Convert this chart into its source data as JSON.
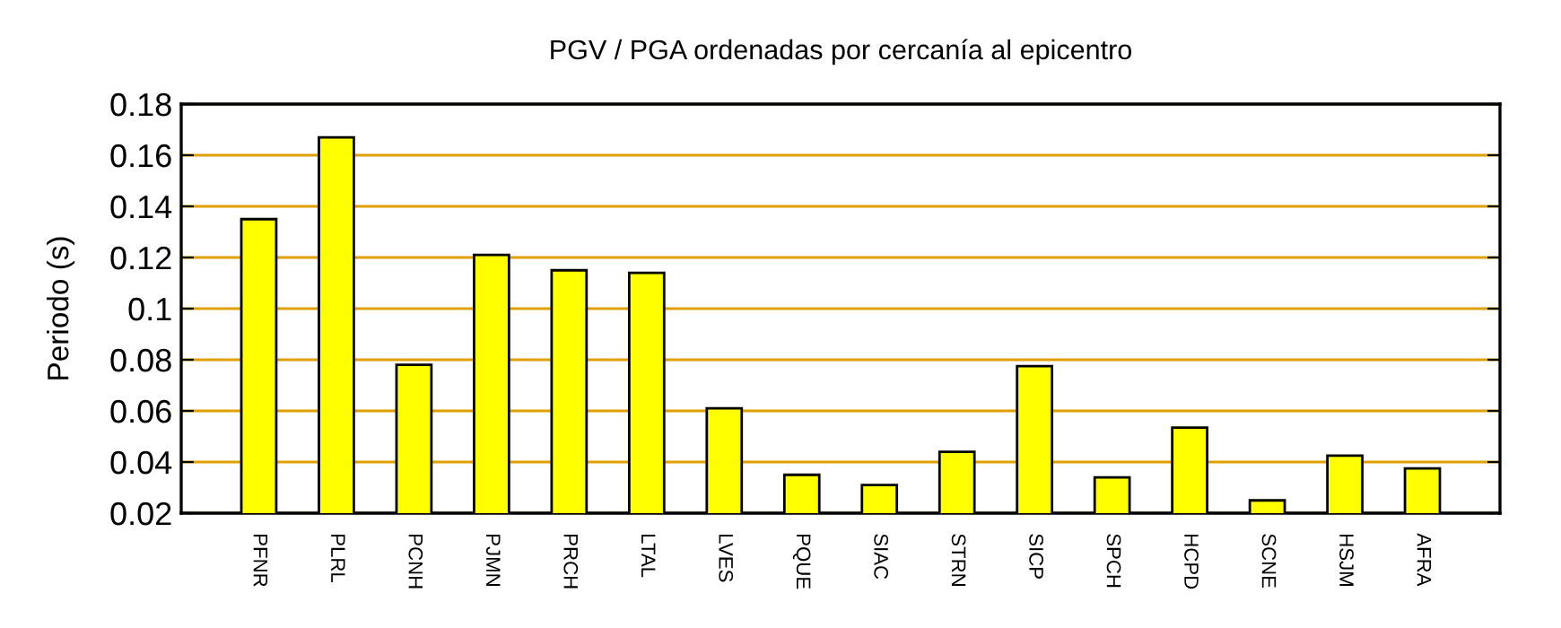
{
  "chart_data": {
    "type": "bar",
    "title": "PGV / PGA ordenadas por cercanía al epicentro",
    "ylabel": "Periodo (s)",
    "categories": [
      "PFNR",
      "PLRL",
      "PCNH",
      "PJMN",
      "PRCH",
      "LTAL",
      "LVES",
      "PQUE",
      "SIAC",
      "STRN",
      "SICP",
      "SPCH",
      "HCPD",
      "SCNE",
      "HSJM",
      "AFRA"
    ],
    "values": [
      0.135,
      0.167,
      0.078,
      0.121,
      0.115,
      0.114,
      0.061,
      0.035,
      0.031,
      0.044,
      0.0775,
      0.034,
      0.0535,
      0.025,
      0.0425,
      0.0375
    ],
    "color": "#ffff00",
    "ylim": [
      0.02,
      0.18
    ],
    "yticks": [
      0.02,
      0.04,
      0.06,
      0.08,
      {
        "value": 0.1,
        "label": "0.1"
      },
      0.12,
      0.14,
      0.16,
      0.18
    ],
    "grid": "y"
  }
}
